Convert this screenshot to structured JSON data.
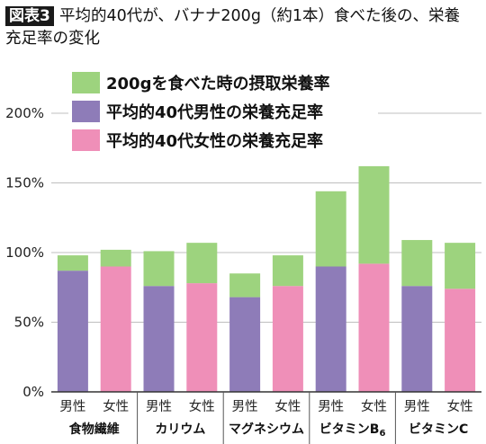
{
  "header": {
    "figure_label": "図表3",
    "title_line1": "平均的40代が、バナナ200g（約1本）食べた後の、栄養",
    "title_line2": "充足率の変化"
  },
  "chart_data": {
    "type": "bar",
    "stacked": true,
    "title": "平均的40代が、バナナ200g（約1本）食べた後の、栄養充足率の変化",
    "ylim": [
      0,
      200
    ],
    "yticks": [
      "0%",
      "50%",
      "100%",
      "150%",
      "200%"
    ],
    "ytick_values": [
      0,
      50,
      100,
      150,
      200
    ],
    "grid": true,
    "legend_position": "top-left",
    "groups": [
      "食物繊維",
      "カリウム",
      "マグネシウム",
      "ビタミンB6",
      "ビタミンC"
    ],
    "sexes": [
      "男性",
      "女性"
    ],
    "categories": [
      "食物繊維 男性",
      "食物繊維 女性",
      "カリウム 男性",
      "カリウム 女性",
      "マグネシウム 男性",
      "マグネシウム 女性",
      "ビタミンB6 男性",
      "ビタミンB6 女性",
      "ビタミンC 男性",
      "ビタミンC 女性"
    ],
    "series": [
      {
        "name": "平均的40代男性の栄養充足率",
        "role": "base-male",
        "color": "#8e7cb8",
        "values": [
          87,
          null,
          76,
          null,
          68,
          null,
          90,
          null,
          76,
          null
        ]
      },
      {
        "name": "平均的40代女性の栄養充足率",
        "role": "base-female",
        "color": "#ef8fb8",
        "values": [
          null,
          90,
          null,
          78,
          null,
          76,
          null,
          92,
          null,
          74
        ]
      },
      {
        "name": "200gを食べた時の摂取栄養率",
        "role": "added",
        "color": "#9dd37e",
        "values": [
          11,
          12,
          25,
          29,
          17,
          22,
          54,
          70,
          33,
          33
        ]
      }
    ],
    "totals": [
      98,
      102,
      101,
      107,
      85,
      98,
      144,
      162,
      109,
      107
    ]
  }
}
